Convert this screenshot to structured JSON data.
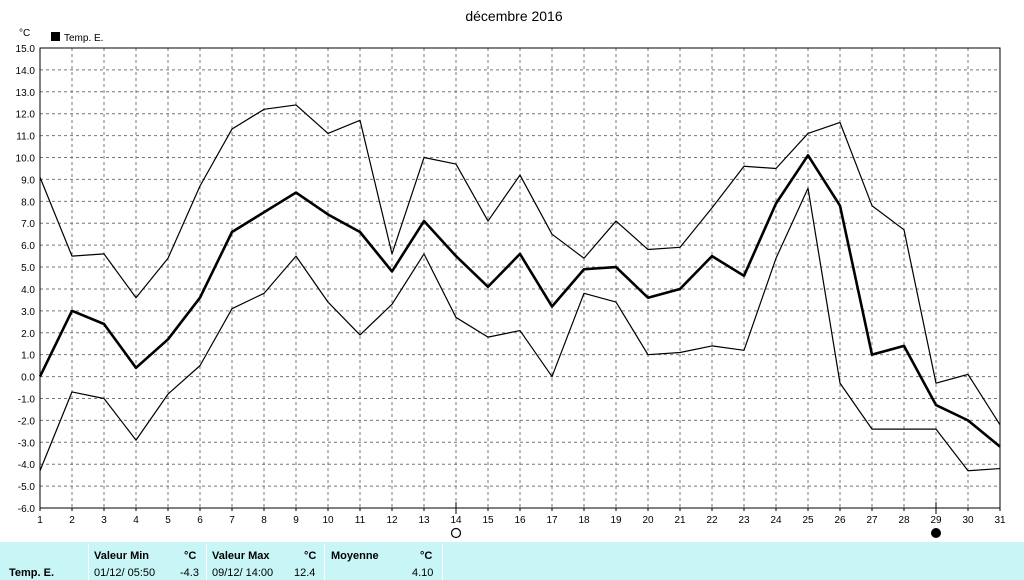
{
  "chart_data": {
    "type": "line",
    "title": "décembre 2016",
    "ylabel": "°C",
    "legend": {
      "label": "Temp. E.",
      "placement": "top-left"
    },
    "ylim": [
      -6.0,
      15.0
    ],
    "xlim": [
      1,
      31
    ],
    "grid": true,
    "x": [
      1,
      2,
      3,
      4,
      5,
      6,
      7,
      8,
      9,
      10,
      11,
      12,
      13,
      14,
      15,
      16,
      17,
      18,
      19,
      20,
      21,
      22,
      23,
      24,
      25,
      26,
      27,
      28,
      29,
      30,
      31
    ],
    "x_tick_labels": [
      "1",
      "2",
      "3",
      "4",
      "5",
      "6",
      "7",
      "8",
      "9",
      "10",
      "11",
      "12",
      "13",
      "14",
      "15",
      "16",
      "17",
      "18",
      "19",
      "20",
      "21",
      "22",
      "23",
      "24",
      "25",
      "26",
      "27",
      "28",
      "29",
      "30",
      "31"
    ],
    "y_tick_labels": [
      "15.0",
      "14.0",
      "13.0",
      "12.0",
      "11.0",
      "10.0",
      "9.0",
      "8.0",
      "7.0",
      "6.0",
      "5.0",
      "4.0",
      "3.0",
      "2.0",
      "1.0",
      "0.0",
      "-1.0",
      "-2.0",
      "-3.0",
      "-4.0",
      "-5.0",
      "-6.0"
    ],
    "series": [
      {
        "name": "Temp. E.",
        "role": "max",
        "color": "#000000",
        "values": [
          9.1,
          5.5,
          5.6,
          3.6,
          5.4,
          8.7,
          11.3,
          12.2,
          12.4,
          11.1,
          11.7,
          5.6,
          10.0,
          9.7,
          7.1,
          9.2,
          6.5,
          5.4,
          7.1,
          5.8,
          5.9,
          7.7,
          9.6,
          9.5,
          11.1,
          11.6,
          7.8,
          6.7,
          -0.3,
          0.1,
          -2.2
        ]
      },
      {
        "name": "Temp. E.",
        "role": "mean",
        "color": "#000000",
        "values": [
          0.0,
          3.0,
          2.4,
          0.4,
          1.7,
          3.6,
          6.6,
          7.5,
          8.4,
          7.4,
          6.6,
          4.8,
          7.1,
          5.5,
          4.1,
          5.6,
          3.2,
          4.9,
          5.0,
          3.6,
          4.0,
          5.5,
          4.6,
          7.9,
          10.1,
          7.8,
          1.0,
          1.4,
          -1.3,
          -2.0,
          -3.2
        ]
      },
      {
        "name": "Temp. E.",
        "role": "min",
        "color": "#000000",
        "values": [
          -4.3,
          -0.7,
          -1.0,
          -2.9,
          -0.8,
          0.5,
          3.1,
          3.8,
          5.5,
          3.4,
          1.9,
          3.3,
          5.6,
          2.7,
          1.8,
          2.1,
          0.0,
          3.8,
          3.4,
          1.0,
          1.1,
          1.4,
          1.2,
          5.4,
          8.6,
          -0.3,
          -2.4,
          -2.4,
          -2.4,
          -4.3,
          -4.2
        ]
      }
    ],
    "moon_phases": [
      {
        "day": 14,
        "phase": "full-moon"
      },
      {
        "day": 29,
        "phase": "new-moon"
      }
    ]
  },
  "stats": {
    "row_label": "Temp. E.",
    "min_header": "Valeur Min",
    "min_unit": "°C",
    "min_datetime": "01/12/  05:50",
    "min_value": "-4.3",
    "max_header": "Valeur Max",
    "max_unit": "°C",
    "max_datetime": "09/12/  14:00",
    "max_value": "12.4",
    "avg_header": "Moyenne",
    "avg_unit": "°C",
    "avg_value": "4.10"
  }
}
